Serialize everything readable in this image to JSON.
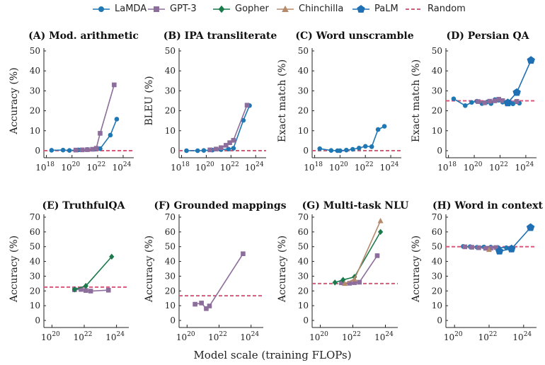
{
  "legend": [
    {
      "name": "LaMDA",
      "color": "#1f77b4",
      "marker": "circle"
    },
    {
      "name": "GPT-3",
      "color": "#8c6d9b",
      "marker": "square"
    },
    {
      "name": "Gopher",
      "color": "#1a7a4c",
      "marker": "diamond"
    },
    {
      "name": "Chinchilla",
      "color": "#b5896a",
      "marker": "triangle"
    },
    {
      "name": "PaLM",
      "color": "#1f6fb4",
      "marker": "pentagon"
    },
    {
      "name": "Random",
      "color": "#d65a7a",
      "marker": "dashed"
    }
  ],
  "xlabel": "Model scale (training FLOPs)",
  "chart_data": [
    {
      "type": "line",
      "title": "(A) Mod. arithmetic",
      "ylabel": "Accuracy (%)",
      "ylim": [
        0,
        50
      ],
      "yticks": [
        0,
        10,
        20,
        30,
        40,
        50
      ],
      "xlim_log10": [
        17.8,
        24.5
      ],
      "xticks": [
        "10^18",
        "10^20",
        "10^22",
        "10^24"
      ],
      "random": 0,
      "series": [
        {
          "name": "LaMDA",
          "points": [
            [
              18.4,
              0.2
            ],
            [
              19.3,
              0.3
            ],
            [
              19.8,
              0.1
            ],
            [
              20.5,
              0.4
            ],
            [
              21.2,
              0.6
            ],
            [
              21.8,
              0.8
            ],
            [
              22.2,
              1.0
            ],
            [
              23.0,
              7.8
            ],
            [
              23.5,
              15.8
            ]
          ]
        },
        {
          "name": "GPT-3",
          "points": [
            [
              20.3,
              0.3
            ],
            [
              20.8,
              0.4
            ],
            [
              21.2,
              0.5
            ],
            [
              21.6,
              0.7
            ],
            [
              21.9,
              1.2
            ],
            [
              22.2,
              8.7
            ],
            [
              23.3,
              33.0
            ]
          ]
        }
      ]
    },
    {
      "type": "line",
      "title": "(B) IPA transliterate",
      "ylabel": "BLEU (%)",
      "ylim": [
        0,
        50
      ],
      "yticks": [
        0,
        10,
        20,
        30,
        40,
        50
      ],
      "xlim_log10": [
        17.8,
        24.5
      ],
      "xticks": [
        "10^18",
        "10^20",
        "10^22",
        "10^24"
      ],
      "random": 0,
      "series": [
        {
          "name": "LaMDA",
          "points": [
            [
              18.4,
              0.0
            ],
            [
              19.3,
              0.0
            ],
            [
              19.8,
              0.1
            ],
            [
              20.5,
              0.3
            ],
            [
              21.2,
              0.5
            ],
            [
              21.8,
              0.8
            ],
            [
              22.2,
              1.2
            ],
            [
              23.0,
              15.2
            ],
            [
              23.5,
              22.6
            ]
          ]
        },
        {
          "name": "GPT-3",
          "points": [
            [
              20.3,
              0.4
            ],
            [
              20.8,
              0.8
            ],
            [
              21.2,
              1.5
            ],
            [
              21.6,
              2.7
            ],
            [
              21.9,
              4.0
            ],
            [
              22.2,
              5.2
            ],
            [
              23.3,
              22.8
            ]
          ]
        }
      ]
    },
    {
      "type": "line",
      "title": "(C) Word unscramble",
      "ylabel": "Exact match (%)",
      "ylim": [
        0,
        50
      ],
      "yticks": [
        0,
        10,
        20,
        30,
        40,
        50
      ],
      "xlim_log10": [
        17.8,
        24.5
      ],
      "xticks": [
        "10^18",
        "10^20",
        "10^22",
        "10^24"
      ],
      "random": 0,
      "series": [
        {
          "name": "LaMDA",
          "points": [
            [
              18.4,
              1.0
            ],
            [
              19.3,
              0.1
            ],
            [
              19.8,
              0.0
            ],
            [
              20.0,
              0.0
            ],
            [
              20.5,
              0.3
            ],
            [
              21.0,
              0.7
            ],
            [
              21.5,
              1.3
            ],
            [
              22.0,
              2.2
            ],
            [
              22.5,
              2.0
            ],
            [
              23.0,
              10.6
            ],
            [
              23.5,
              12.2
            ]
          ]
        }
      ]
    },
    {
      "type": "line",
      "title": "(D) Persian QA",
      "ylabel": "Exact match (%)",
      "ylim": [
        0,
        50
      ],
      "yticks": [
        0,
        10,
        20,
        30,
        40,
        50
      ],
      "xlim_log10": [
        17.8,
        24.5
      ],
      "xticks": [
        "10^18",
        "10^20",
        "10^22",
        "10^24"
      ],
      "random": 25,
      "series": [
        {
          "name": "LaMDA",
          "points": [
            [
              18.4,
              26.0
            ],
            [
              19.3,
              22.6
            ],
            [
              19.8,
              24.2
            ],
            [
              20.2,
              24.8
            ],
            [
              20.6,
              23.6
            ],
            [
              21.0,
              24.4
            ],
            [
              21.3,
              23.6
            ],
            [
              21.6,
              25.6
            ],
            [
              21.9,
              25.3
            ],
            [
              22.2,
              24.3
            ],
            [
              22.6,
              24.5
            ],
            [
              23.0,
              23.5
            ],
            [
              23.5,
              23.8
            ]
          ]
        },
        {
          "name": "GPT-3",
          "points": [
            [
              20.3,
              24.6
            ],
            [
              20.8,
              24.0
            ],
            [
              21.2,
              24.8
            ],
            [
              21.6,
              25.0
            ],
            [
              21.9,
              25.8
            ],
            [
              22.2,
              25.1
            ],
            [
              23.3,
              24.7
            ]
          ]
        },
        {
          "name": "PaLM",
          "points": [
            [
              22.6,
              24.0
            ],
            [
              23.3,
              29.2
            ],
            [
              24.4,
              45.3
            ]
          ]
        }
      ]
    },
    {
      "type": "line",
      "title": "(E) TruthfulQA",
      "ylabel": "Accuracy (%)",
      "ylim": [
        0,
        70
      ],
      "yticks": [
        0,
        10,
        20,
        30,
        40,
        50,
        60,
        70
      ],
      "xlim_log10": [
        19.5,
        24.5
      ],
      "xticks": [
        "10^20",
        "10^22",
        "10^24"
      ],
      "random": 22.6,
      "series": [
        {
          "name": "GPT-3",
          "points": [
            [
              21.4,
              20.8
            ],
            [
              21.8,
              21.0
            ],
            [
              22.1,
              20.3
            ],
            [
              22.4,
              19.9
            ],
            [
              23.5,
              20.5
            ]
          ]
        },
        {
          "name": "Gopher",
          "points": [
            [
              21.4,
              21.0
            ],
            [
              22.1,
              23.4
            ],
            [
              23.7,
              43.2
            ]
          ]
        }
      ]
    },
    {
      "type": "line",
      "title": "(F) Grounded mappings",
      "ylabel": "Accuracy (%)",
      "ylim": [
        0,
        70
      ],
      "yticks": [
        0,
        10,
        20,
        30,
        40,
        50,
        60,
        70
      ],
      "xlim_log10": [
        19.5,
        24.5
      ],
      "xticks": [
        "10^20",
        "10^22",
        "10^24"
      ],
      "random": 16.7,
      "series": [
        {
          "name": "GPT-3",
          "points": [
            [
              20.5,
              11.0
            ],
            [
              20.9,
              11.8
            ],
            [
              21.2,
              8.0
            ],
            [
              21.4,
              9.8
            ],
            [
              23.5,
              45.2
            ]
          ]
        }
      ]
    },
    {
      "type": "line",
      "title": "(G) Multi-task NLU",
      "ylabel": "Accuracy (%)",
      "ylim": [
        0,
        70
      ],
      "yticks": [
        0,
        10,
        20,
        30,
        40,
        50,
        60,
        70
      ],
      "xlim_log10": [
        19.5,
        24.5
      ],
      "xticks": [
        "10^20",
        "10^22",
        "10^24"
      ],
      "random": 25,
      "series": [
        {
          "name": "GPT-3",
          "points": [
            [
              21.3,
              25.5
            ],
            [
              21.8,
              25.2
            ],
            [
              22.1,
              25.6
            ],
            [
              22.4,
              25.9
            ],
            [
              23.5,
              43.9
            ]
          ]
        },
        {
          "name": "Gopher",
          "points": [
            [
              20.9,
              25.7
            ],
            [
              21.4,
              27.5
            ],
            [
              22.1,
              29.5
            ],
            [
              23.7,
              60.0
            ]
          ]
        },
        {
          "name": "Chinchilla",
          "points": [
            [
              21.5,
              25.0
            ],
            [
              22.1,
              28.0
            ],
            [
              23.7,
              67.5
            ]
          ]
        }
      ]
    },
    {
      "type": "line",
      "title": "(H) Word in context",
      "ylabel": "Accuracy (%)",
      "ylim": [
        0,
        70
      ],
      "yticks": [
        0,
        10,
        20,
        30,
        40,
        50,
        60,
        70
      ],
      "xlim_log10": [
        19.5,
        24.5
      ],
      "xticks": [
        "10^20",
        "10^22",
        "10^24"
      ],
      "random": 50,
      "series": [
        {
          "name": "LaMDA",
          "points": [
            [
              20.5,
              50.2
            ],
            [
              20.9,
              50.0
            ],
            [
              21.3,
              49.6
            ],
            [
              21.7,
              49.8
            ],
            [
              22.1,
              49.7
            ],
            [
              22.5,
              49.5
            ],
            [
              23.0,
              49.3
            ]
          ]
        },
        {
          "name": "GPT-3",
          "points": [
            [
              20.6,
              49.9
            ],
            [
              21.0,
              49.6
            ],
            [
              21.4,
              49.3
            ],
            [
              21.8,
              48.9
            ],
            [
              22.1,
              49.0
            ],
            [
              22.4,
              49.4
            ]
          ]
        },
        {
          "name": "Chinchilla",
          "points": [
            [
              22.0,
              48.0
            ]
          ]
        },
        {
          "name": "PaLM",
          "points": [
            [
              22.6,
              47.0
            ],
            [
              23.3,
              48.5
            ],
            [
              24.4,
              63.0
            ]
          ]
        }
      ]
    }
  ]
}
